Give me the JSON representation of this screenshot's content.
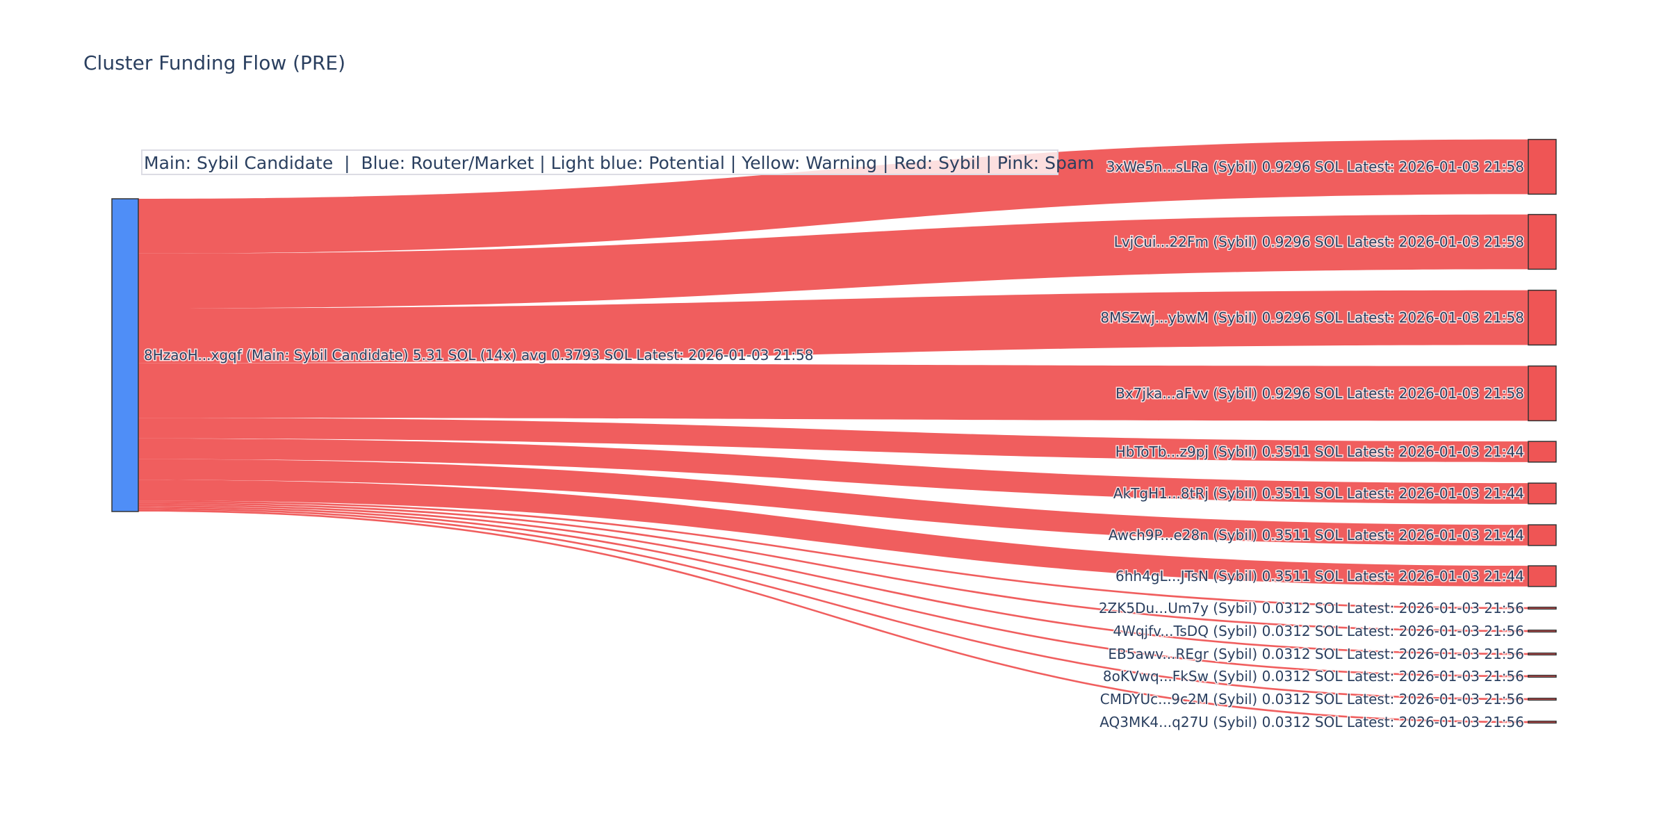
{
  "chart_data": {
    "type": "sankey",
    "title": "Cluster Funding Flow (PRE)",
    "legend": "Main: Sybil Candidate  |  Blue: Router/Market | Light blue: Potential | Yellow: Warning | Red: Sybil | Pink: Spam",
    "legend_placement": "top-left",
    "unit": "SOL",
    "colors": {
      "main_node": "#4f8ef7",
      "sybil_node": "#ef5555",
      "link": "#ef5555",
      "node_border": "#333333"
    },
    "source": {
      "label": "8HzaoH...xgqf (Main: Sybil Candidate) 5.31 SOL (14x) avg 0.3793 SOL Latest: 2026-01-03 21:58",
      "value": 5.31
    },
    "targets": [
      {
        "label": "3xWe5n...sLRa (Sybil) 0.9296 SOL Latest: 2026-01-03 21:58",
        "value": 0.9296
      },
      {
        "label": "LvjCui...22Fm (Sybil) 0.9296 SOL Latest: 2026-01-03 21:58",
        "value": 0.9296
      },
      {
        "label": "8MSZwj...ybwM (Sybil) 0.9296 SOL Latest: 2026-01-03 21:58",
        "value": 0.9296
      },
      {
        "label": "Bx7jka...aFvv (Sybil) 0.9296 SOL Latest: 2026-01-03 21:58",
        "value": 0.9296
      },
      {
        "label": "HbToTb...z9pj (Sybil) 0.3511 SOL Latest: 2026-01-03 21:44",
        "value": 0.3511
      },
      {
        "label": "AkTgH1...8tRj (Sybil) 0.3511 SOL Latest: 2026-01-03 21:44",
        "value": 0.3511
      },
      {
        "label": "Awch9P...e28n (Sybil) 0.3511 SOL Latest: 2026-01-03 21:44",
        "value": 0.3511
      },
      {
        "label": "6hh4gL...JTsN (Sybil) 0.3511 SOL Latest: 2026-01-03 21:44",
        "value": 0.3511
      },
      {
        "label": "2ZK5Du...Um7y (Sybil) 0.0312 SOL Latest: 2026-01-03 21:56",
        "value": 0.0312
      },
      {
        "label": "4Wqjfv...TsDQ (Sybil) 0.0312 SOL Latest: 2026-01-03 21:56",
        "value": 0.0312
      },
      {
        "label": "EB5awv...REgr (Sybil) 0.0312 SOL Latest: 2026-01-03 21:56",
        "value": 0.0312
      },
      {
        "label": "8oKVwq...FkSw (Sybil) 0.0312 SOL Latest: 2026-01-03 21:56",
        "value": 0.0312
      },
      {
        "label": "CMDYUc...9c2M (Sybil) 0.0312 SOL Latest: 2026-01-03 21:56",
        "value": 0.0312
      },
      {
        "label": "AQ3MK4...q27U (Sybil) 0.0312 SOL Latest: 2026-01-03 21:56",
        "value": 0.0312
      }
    ]
  }
}
